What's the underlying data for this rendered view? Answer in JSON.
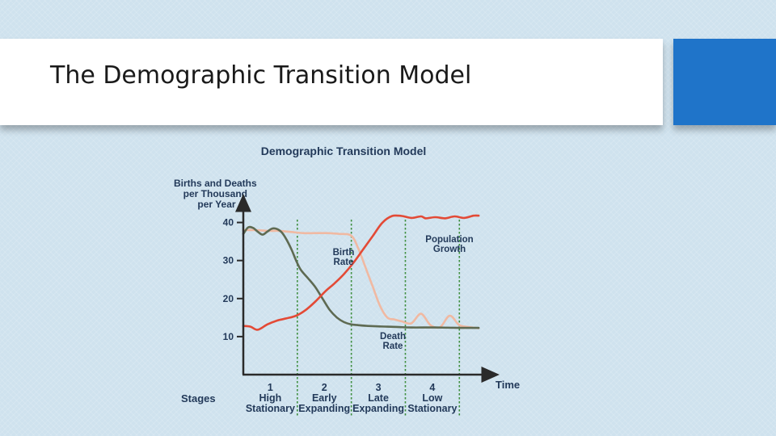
{
  "slide": {
    "title": "The Demographic Transition Model"
  },
  "colors": {
    "accent": "#1f74c9",
    "birth_rate": "#f0b9a2",
    "death_rate": "#5e6a52",
    "population_growth": "#e34a36",
    "stage_divider": "#3f8f3f",
    "label_text": "#233a5a"
  },
  "chart_data": {
    "type": "line",
    "title": "Demographic Transition Model",
    "ylabel": "Births and Deaths per Thousand per Year",
    "xlabel": "Time",
    "ylim": [
      0,
      45
    ],
    "xlim": [
      0,
      100
    ],
    "yticks": [
      "10",
      "20",
      "30",
      "40"
    ],
    "grid": false,
    "stages_label": "Stages",
    "stages": [
      {
        "number": "1",
        "line1": "High",
        "line2": "Stationary"
      },
      {
        "number": "2",
        "line1": "Early",
        "line2": "Expanding"
      },
      {
        "number": "3",
        "line1": "Late",
        "line2": "Expanding"
      },
      {
        "number": "4",
        "line1": "Low",
        "line2": "Stationary"
      }
    ],
    "stage_boundaries": [
      22.5,
      45,
      67.5,
      90
    ],
    "series_labels": {
      "birth_rate": [
        "Birth",
        "Rate"
      ],
      "death_rate": [
        "Death",
        "Rate"
      ],
      "population_growth": [
        "Population",
        "Growth"
      ]
    },
    "series": [
      {
        "name": "Birth Rate",
        "x": [
          0,
          5,
          10,
          15,
          20,
          25,
          30,
          35,
          40,
          45,
          48,
          51,
          54,
          57,
          60,
          63,
          66,
          70,
          74,
          78,
          82,
          86,
          90,
          94,
          98
        ],
        "y": [
          38,
          38,
          37.8,
          37.8,
          37.5,
          37.2,
          37.2,
          37.2,
          37,
          36.5,
          33,
          28,
          23,
          18,
          15,
          14.5,
          14,
          13.5,
          16,
          13,
          12.5,
          15.5,
          13,
          12.5,
          12.2
        ]
      },
      {
        "name": "Death Rate",
        "x": [
          0,
          2,
          4,
          6,
          8,
          10,
          12,
          14,
          16,
          18,
          20,
          22,
          24,
          27,
          30,
          33,
          36,
          39,
          42,
          45,
          48,
          52,
          56,
          60,
          65,
          70,
          80,
          90,
          98
        ],
        "y": [
          37,
          38.7,
          38.6,
          37.6,
          36.8,
          37.6,
          38.4,
          38.3,
          37.4,
          35.5,
          33,
          30,
          27.5,
          25.3,
          23,
          20,
          17,
          15,
          13.8,
          13.2,
          13,
          12.8,
          12.7,
          12.6,
          12.5,
          12.4,
          12.4,
          12.3,
          12.3
        ]
      },
      {
        "name": "Population Growth",
        "x": [
          0,
          3,
          6,
          10,
          14,
          18,
          22,
          26,
          30,
          34,
          38,
          42,
          46,
          50,
          54,
          58,
          62,
          66,
          70,
          74,
          76,
          80,
          84,
          88,
          92,
          96,
          98
        ],
        "y": [
          12.8,
          12.6,
          11.8,
          13.2,
          14.2,
          14.8,
          15.5,
          17,
          19.2,
          21.8,
          24,
          26.5,
          29.5,
          33,
          36.5,
          40,
          41.7,
          41.7,
          41.2,
          41.6,
          41.1,
          41.4,
          41.1,
          41.6,
          41.2,
          41.8,
          41.8
        ]
      }
    ]
  }
}
